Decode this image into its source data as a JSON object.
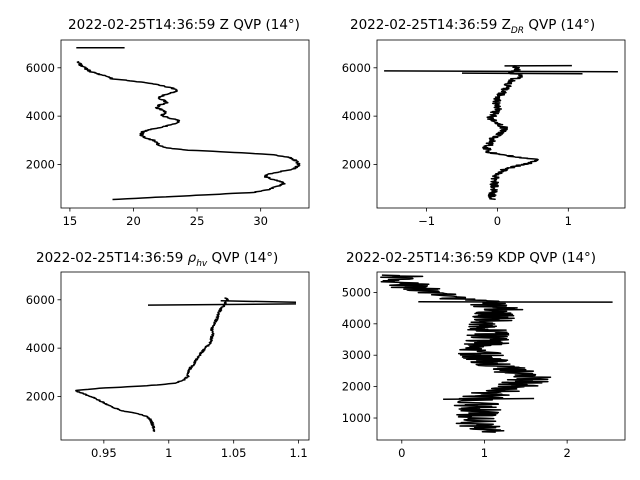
{
  "chart_data": [
    {
      "type": "line",
      "title": "2022-02-25T14:36:59 Z QVP (14°)",
      "xlabel": "",
      "ylabel": "",
      "xlim": [
        14.3,
        33.8
      ],
      "ylim": [
        200,
        7150
      ],
      "xticks": [
        15,
        20,
        25,
        30
      ],
      "yticks": [
        2000,
        4000,
        6000
      ],
      "series": [
        {
          "color": "#000000",
          "noise": 0.15,
          "points": [
            [
              18.3,
              550
            ],
            [
              22,
              650
            ],
            [
              26,
              750
            ],
            [
              29.5,
              850
            ],
            [
              30.5,
              950
            ],
            [
              31.3,
              1100
            ],
            [
              31.8,
              1200
            ],
            [
              31.6,
              1300
            ],
            [
              30.8,
              1400
            ],
            [
              30.4,
              1500
            ],
            [
              30.6,
              1600
            ],
            [
              31.5,
              1700
            ],
            [
              32.5,
              1800
            ],
            [
              33,
              1950
            ],
            [
              32.8,
              2150
            ],
            [
              32.2,
              2300
            ],
            [
              31,
              2400
            ],
            [
              28,
              2500
            ],
            [
              24,
              2600
            ],
            [
              22.5,
              2700
            ],
            [
              22,
              2800
            ],
            [
              21.8,
              2900
            ],
            [
              21.6,
              3000
            ],
            [
              21,
              3100
            ],
            [
              20.6,
              3200
            ],
            [
              20.7,
              3350
            ],
            [
              21.3,
              3450
            ],
            [
              22.3,
              3550
            ],
            [
              23,
              3650
            ],
            [
              23.6,
              3750
            ],
            [
              23.4,
              3850
            ],
            [
              22.6,
              3950
            ],
            [
              22.2,
              4050
            ],
            [
              22.5,
              4150
            ],
            [
              22.3,
              4250
            ],
            [
              21.8,
              4350
            ],
            [
              22,
              4450
            ],
            [
              22.6,
              4550
            ],
            [
              22.4,
              4650
            ],
            [
              22,
              4750
            ],
            [
              22.3,
              4850
            ],
            [
              22.9,
              4950
            ],
            [
              23.5,
              5050
            ],
            [
              23.1,
              5150
            ],
            [
              22.3,
              5250
            ],
            [
              21.4,
              5350
            ],
            [
              20,
              5450
            ],
            [
              18.3,
              5550
            ],
            [
              17.8,
              5650
            ],
            [
              17.2,
              5750
            ],
            [
              16.6,
              5850
            ],
            [
              16.3,
              5950
            ],
            [
              16,
              6050
            ],
            [
              15.8,
              6150
            ],
            [
              15.7,
              6250
            ]
          ]
        },
        {
          "color": "#000000",
          "noise": 0,
          "points": [
            [
              15.5,
              6830
            ],
            [
              19.3,
              6830
            ]
          ]
        }
      ]
    },
    {
      "type": "line",
      "title": "2022-02-25T14:36:59 Z",
      "title_sub": "DR",
      "title_suffix": " QVP (14°)",
      "xlabel": "",
      "ylabel": "",
      "xlim": [
        -1.7,
        1.8
      ],
      "ylim": [
        200,
        7150
      ],
      "xticks": [
        -1,
        0,
        1
      ],
      "yticks": [
        2000,
        4000,
        6000
      ],
      "series": [
        {
          "color": "#000000",
          "noise": 0.06,
          "points": [
            [
              -0.05,
              550
            ],
            [
              -0.08,
              700
            ],
            [
              -0.05,
              850
            ],
            [
              -0.03,
              1000
            ],
            [
              -0.05,
              1200
            ],
            [
              -0.03,
              1400
            ],
            [
              -0.02,
              1600
            ],
            [
              0.1,
              1800
            ],
            [
              0.3,
              1950
            ],
            [
              0.5,
              2100
            ],
            [
              0.55,
              2200
            ],
            [
              0.3,
              2300
            ],
            [
              0.05,
              2400
            ],
            [
              -0.1,
              2500
            ],
            [
              -0.15,
              2700
            ],
            [
              -0.1,
              2900
            ],
            [
              -0.05,
              3100
            ],
            [
              0.05,
              3300
            ],
            [
              0.1,
              3500
            ],
            [
              0,
              3700
            ],
            [
              -0.1,
              3900
            ],
            [
              -0.05,
              4100
            ],
            [
              0,
              4300
            ],
            [
              -0.03,
              4500
            ],
            [
              0,
              4700
            ],
            [
              0.05,
              4900
            ],
            [
              0.1,
              5100
            ],
            [
              0.15,
              5300
            ],
            [
              0.2,
              5500
            ],
            [
              0.3,
              5600
            ],
            [
              0.3,
              5700
            ],
            [
              0.2,
              5800
            ],
            [
              0.3,
              5950
            ],
            [
              0.25,
              6100
            ]
          ]
        },
        {
          "color": "#000000",
          "noise": 0,
          "points": [
            [
              -1.6,
              5870
            ],
            [
              1.7,
              5840
            ]
          ]
        },
        {
          "color": "#000000",
          "noise": 0,
          "points": [
            [
              -0.5,
              5780
            ],
            [
              1.2,
              5750
            ]
          ]
        },
        {
          "color": "#000000",
          "noise": 0,
          "points": [
            [
              0.1,
              6080
            ],
            [
              1.05,
              6090
            ]
          ]
        }
      ]
    },
    {
      "type": "line",
      "title": "2022-02-25T14:36:59",
      "title_greek": "ρ",
      "title_sub": "hv",
      "title_suffix": " QVP (14°)",
      "xlabel": "",
      "ylabel": "",
      "xlim": [
        0.917,
        1.108
      ],
      "ylim": [
        200,
        7150
      ],
      "xticks": [
        0.95,
        1.0,
        1.05,
        1.1
      ],
      "yticks": [
        2000,
        4000,
        6000
      ],
      "series": [
        {
          "color": "#000000",
          "noise": 0.001,
          "points": [
            [
              0.989,
              550
            ],
            [
              0.988,
              750
            ],
            [
              0.987,
              950
            ],
            [
              0.985,
              1100
            ],
            [
              0.982,
              1200
            ],
            [
              0.975,
              1300
            ],
            [
              0.965,
              1400
            ],
            [
              0.955,
              1600
            ],
            [
              0.948,
              1800
            ],
            [
              0.94,
              2000
            ],
            [
              0.93,
              2200
            ],
            [
              0.928,
              2250
            ],
            [
              0.95,
              2350
            ],
            [
              0.985,
              2450
            ],
            [
              1.005,
              2550
            ],
            [
              1.012,
              2700
            ],
            [
              1.015,
              2850
            ],
            [
              1.015,
              3000
            ],
            [
              1.017,
              3200
            ],
            [
              1.02,
              3400
            ],
            [
              1.022,
              3600
            ],
            [
              1.025,
              3800
            ],
            [
              1.028,
              4000
            ],
            [
              1.032,
              4200
            ],
            [
              1.033,
              4400
            ],
            [
              1.034,
              4600
            ],
            [
              1.033,
              4800
            ],
            [
              1.035,
              5000
            ],
            [
              1.037,
              5200
            ],
            [
              1.038,
              5400
            ],
            [
              1.04,
              5600
            ],
            [
              1.043,
              5800
            ],
            [
              1.045,
              6000
            ],
            [
              1.043,
              6100
            ]
          ]
        },
        {
          "color": "#000000",
          "noise": 0,
          "points": [
            [
              0.984,
              5780
            ],
            [
              1.098,
              5830
            ]
          ]
        },
        {
          "color": "#000000",
          "noise": 0,
          "points": [
            [
              1.04,
              5960
            ],
            [
              1.098,
              5900
            ]
          ]
        }
      ]
    },
    {
      "type": "line",
      "title": "2022-02-25T14:36:59 KDP QVP (14°)",
      "xlabel": "",
      "ylabel": "",
      "xlim": [
        -0.3,
        2.7
      ],
      "ylim": [
        300,
        5650
      ],
      "xticks": [
        0,
        1,
        2
      ],
      "yticks": [
        1000,
        2000,
        3000,
        4000,
        5000
      ],
      "series": [
        {
          "color": "#000000",
          "noise": 0.28,
          "points": [
            [
              1,
              550
            ],
            [
              1.05,
              650
            ],
            [
              0.9,
              800
            ],
            [
              0.85,
              1000
            ],
            [
              0.95,
              1200
            ],
            [
              0.9,
              1400
            ],
            [
              0.95,
              1600
            ],
            [
              1.1,
              1800
            ],
            [
              1.4,
              2000
            ],
            [
              1.5,
              2150
            ],
            [
              1.55,
              2300
            ],
            [
              1.4,
              2450
            ],
            [
              1.2,
              2650
            ],
            [
              1.05,
              2850
            ],
            [
              0.95,
              3050
            ],
            [
              1.0,
              3300
            ],
            [
              1.05,
              3500
            ],
            [
              1.0,
              3750
            ],
            [
              1.05,
              4000
            ],
            [
              1.1,
              4250
            ],
            [
              1.2,
              4500
            ],
            [
              1.0,
              4700
            ],
            [
              0.6,
              4850
            ],
            [
              0.3,
              5000
            ],
            [
              0.15,
              5150
            ],
            [
              0.05,
              5300
            ],
            [
              -0.05,
              5450
            ],
            [
              0,
              5550
            ]
          ]
        },
        {
          "color": "#000000",
          "noise": 0,
          "points": [
            [
              0.2,
              4700
            ],
            [
              2.55,
              4690
            ]
          ]
        },
        {
          "color": "#000000",
          "noise": 0,
          "points": [
            [
              0.5,
              1600
            ],
            [
              1.6,
              1620
            ]
          ]
        }
      ]
    }
  ]
}
